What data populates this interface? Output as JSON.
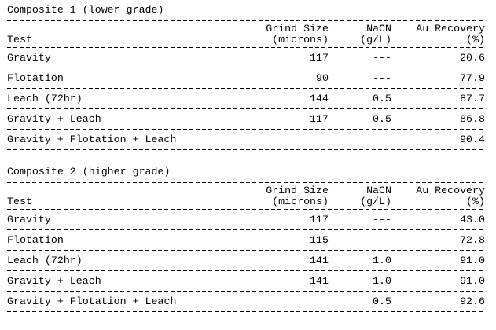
{
  "composites": [
    {
      "title": "Composite 1 (lower grade)",
      "headers": {
        "test": "Test",
        "grind_1": "Grind Size",
        "grind_2": "(microns)",
        "nacn_1": "NaCN",
        "nacn_2": "(g/L)",
        "au_1": "Au Recovery",
        "au_2": "(%)"
      },
      "rows": [
        {
          "test": "Gravity",
          "grind": "117",
          "nacn": "---",
          "au": "20.6"
        },
        {
          "test": "Flotation",
          "grind": "90",
          "nacn": "---",
          "au": "77.9"
        },
        {
          "test": "Leach (72hr)",
          "grind": "144",
          "nacn": "0.5",
          "au": "87.7"
        },
        {
          "test": "Gravity + Leach",
          "grind": "117",
          "nacn": "0.5",
          "au": "86.8"
        },
        {
          "test": "Gravity + Flotation + Leach",
          "grind": "",
          "nacn": "",
          "au": "90.4"
        }
      ]
    },
    {
      "title": "Composite 2 (higher grade)",
      "headers": {
        "test": "Test",
        "grind_1": "Grind Size",
        "grind_2": "(microns)",
        "nacn_1": "NaCN",
        "nacn_2": "(g/L)",
        "au_1": "Au Recovery",
        "au_2": "(%)"
      },
      "rows": [
        {
          "test": "Gravity",
          "grind": "117",
          "nacn": "---",
          "au": "43.0"
        },
        {
          "test": "Flotation",
          "grind": "115",
          "nacn": "---",
          "au": "72.8"
        },
        {
          "test": "Leach (72hr)",
          "grind": "141",
          "nacn": "1.0",
          "au": "91.0"
        },
        {
          "test": "Gravity + Leach",
          "grind": "141",
          "nacn": "1.0",
          "au": "91.0"
        },
        {
          "test": "Gravity + Flotation + Leach",
          "grind": "",
          "nacn": "0.5",
          "au": "92.6"
        }
      ]
    }
  ]
}
